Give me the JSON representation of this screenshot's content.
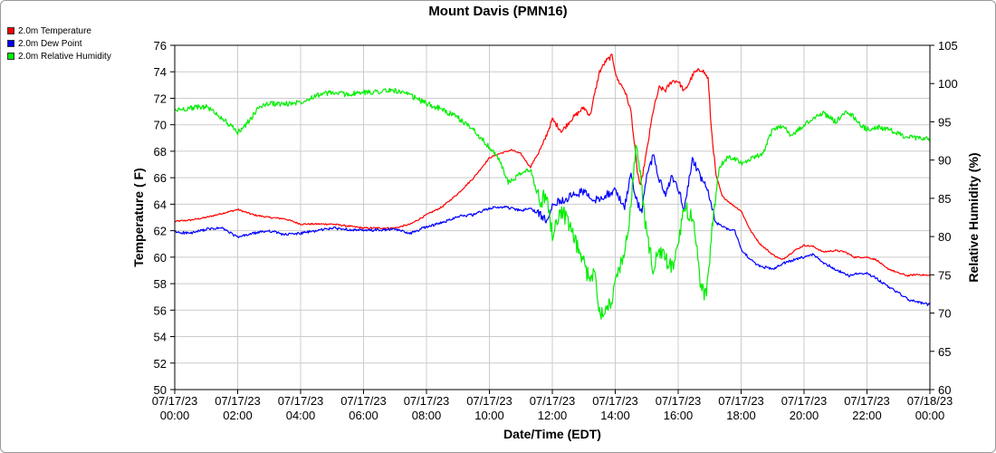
{
  "chart_data": {
    "type": "line",
    "title": "Mount Davis (PMN16)",
    "xlabel": "Date/Time (EDT)",
    "ylabel": "Temperature ( F)",
    "y2label": "Relative Humidity (%)",
    "ylim": [
      50,
      76
    ],
    "y2lim": [
      60,
      105
    ],
    "y_ticks": [
      50,
      52,
      54,
      56,
      58,
      60,
      62,
      64,
      66,
      68,
      70,
      72,
      74,
      76
    ],
    "y2_ticks": [
      60,
      65,
      70,
      75,
      80,
      85,
      90,
      95,
      100,
      105
    ],
    "x_hours": [
      0,
      2,
      4,
      6,
      8,
      10,
      12,
      14,
      16,
      18,
      20,
      22,
      24
    ],
    "x_tick_labels": [
      [
        "07/17/23",
        "00:00"
      ],
      [
        "07/17/23",
        "02:00"
      ],
      [
        "07/17/23",
        "04:00"
      ],
      [
        "07/17/23",
        "06:00"
      ],
      [
        "07/17/23",
        "08:00"
      ],
      [
        "07/17/23",
        "10:00"
      ],
      [
        "07/17/23",
        "12:00"
      ],
      [
        "07/17/23",
        "14:00"
      ],
      [
        "07/17/23",
        "16:00"
      ],
      [
        "07/17/23",
        "18:00"
      ],
      [
        "07/17/23",
        "20:00"
      ],
      [
        "07/17/23",
        "22:00"
      ],
      [
        "07/18/23",
        "00:00"
      ]
    ],
    "grid": true,
    "legend_position": "top-left",
    "series": [
      {
        "name": "2.0m Temperature",
        "color": "#ff0000",
        "axis": "left",
        "points": [
          [
            0,
            62.7
          ],
          [
            0.5,
            62.8
          ],
          [
            1,
            63
          ],
          [
            1.5,
            63.3
          ],
          [
            2,
            63.6
          ],
          [
            2.5,
            63.2
          ],
          [
            3,
            63
          ],
          [
            3.5,
            62.9
          ],
          [
            4,
            62.5
          ],
          [
            5,
            62.5
          ],
          [
            6,
            62.2
          ],
          [
            7,
            62.2
          ],
          [
            7.5,
            62.5
          ],
          [
            8,
            63.2
          ],
          [
            8.5,
            63.8
          ],
          [
            9,
            64.8
          ],
          [
            9.5,
            66
          ],
          [
            10,
            67.5
          ],
          [
            10.3,
            67.8
          ],
          [
            10.7,
            68.1
          ],
          [
            11,
            67.8
          ],
          [
            11.3,
            66.8
          ],
          [
            11.7,
            68.5
          ],
          [
            12,
            70.4
          ],
          [
            12.3,
            69.5
          ],
          [
            12.6,
            70.4
          ],
          [
            13,
            71.3
          ],
          [
            13.2,
            70.7
          ],
          [
            13.5,
            74
          ],
          [
            13.7,
            74.8
          ],
          [
            13.9,
            75.2
          ],
          [
            14.05,
            73.5
          ],
          [
            14.3,
            72.6
          ],
          [
            14.5,
            71
          ],
          [
            14.7,
            66.5
          ],
          [
            14.8,
            65.3
          ],
          [
            15,
            68
          ],
          [
            15.2,
            71
          ],
          [
            15.4,
            72.8
          ],
          [
            15.6,
            72.6
          ],
          [
            15.8,
            73.3
          ],
          [
            16,
            73.3
          ],
          [
            16.2,
            72.5
          ],
          [
            16.5,
            73.9
          ],
          [
            16.75,
            74.2
          ],
          [
            16.95,
            73.5
          ],
          [
            17.05,
            69.8
          ],
          [
            17.2,
            66.2
          ],
          [
            17.4,
            64.6
          ],
          [
            17.7,
            64.0
          ],
          [
            18,
            63.5
          ],
          [
            18.3,
            62.0
          ],
          [
            18.6,
            61.0
          ],
          [
            19,
            60.2
          ],
          [
            19.3,
            59.8
          ],
          [
            19.7,
            60.5
          ],
          [
            20,
            60.9
          ],
          [
            20.3,
            60.8
          ],
          [
            20.6,
            60.4
          ],
          [
            21,
            60.5
          ],
          [
            21.3,
            60.4
          ],
          [
            21.6,
            60.0
          ],
          [
            22,
            60.0
          ],
          [
            22.3,
            59.8
          ],
          [
            22.6,
            59.2
          ],
          [
            23,
            58.8
          ],
          [
            23.3,
            58.6
          ],
          [
            23.6,
            58.7
          ],
          [
            24,
            58.6
          ]
        ]
      },
      {
        "name": "2.0m Dew Point",
        "color": "#0000ff",
        "axis": "left",
        "points": [
          [
            0,
            61.9
          ],
          [
            0.5,
            61.8
          ],
          [
            1,
            62.1
          ],
          [
            1.5,
            62.2
          ],
          [
            2,
            61.5
          ],
          [
            2.5,
            61.8
          ],
          [
            3,
            62
          ],
          [
            3.5,
            61.7
          ],
          [
            4,
            61.8
          ],
          [
            5,
            62.2
          ],
          [
            6,
            62.0
          ],
          [
            7,
            62.1
          ],
          [
            7.5,
            61.8
          ],
          [
            8,
            62.3
          ],
          [
            8.5,
            62.6
          ],
          [
            9,
            63.1
          ],
          [
            9.5,
            63.2
          ],
          [
            10,
            63.7
          ],
          [
            10.5,
            63.8
          ],
          [
            11,
            63.5
          ],
          [
            11.3,
            63.7
          ],
          [
            11.6,
            63.2
          ],
          [
            11.8,
            62.8
          ],
          [
            12,
            64.0
          ],
          [
            12.5,
            64.5
          ],
          [
            13,
            65.0
          ],
          [
            13.3,
            64.2
          ],
          [
            13.6,
            64.6
          ],
          [
            14,
            65.0
          ],
          [
            14.3,
            63.8
          ],
          [
            14.5,
            66.3
          ],
          [
            14.7,
            64.0
          ],
          [
            14.85,
            63.6
          ],
          [
            15,
            66.0
          ],
          [
            15.2,
            67.7
          ],
          [
            15.4,
            65.8
          ],
          [
            15.6,
            64.8
          ],
          [
            15.8,
            66.0
          ],
          [
            16,
            65.2
          ],
          [
            16.2,
            63.6
          ],
          [
            16.45,
            67.5
          ],
          [
            16.7,
            66.0
          ],
          [
            16.9,
            65.3
          ],
          [
            17.05,
            64.0
          ],
          [
            17.2,
            62.6
          ],
          [
            17.5,
            62.2
          ],
          [
            17.8,
            62.0
          ],
          [
            18,
            60.6
          ],
          [
            18.3,
            59.8
          ],
          [
            18.6,
            59.3
          ],
          [
            19,
            59.1
          ],
          [
            19.3,
            59.5
          ],
          [
            19.7,
            59.8
          ],
          [
            20,
            60.0
          ],
          [
            20.3,
            60.2
          ],
          [
            20.6,
            59.6
          ],
          [
            21,
            59.1
          ],
          [
            21.4,
            58.6
          ],
          [
            21.8,
            58.8
          ],
          [
            22,
            58.8
          ],
          [
            22.3,
            58.4
          ],
          [
            22.6,
            57.9
          ],
          [
            23,
            57.3
          ],
          [
            23.3,
            56.8
          ],
          [
            23.6,
            56.6
          ],
          [
            24,
            56.4
          ]
        ]
      },
      {
        "name": "2.0m Relative Humidity",
        "color": "#00ee00",
        "axis": "right",
        "points": [
          [
            0,
            96.5
          ],
          [
            0.5,
            96.8
          ],
          [
            1,
            97
          ],
          [
            1.5,
            95.5
          ],
          [
            2,
            93.6
          ],
          [
            2.3,
            94.8
          ],
          [
            2.7,
            97
          ],
          [
            3,
            97.4
          ],
          [
            3.5,
            97.3
          ],
          [
            4,
            97.6
          ],
          [
            4.5,
            98.5
          ],
          [
            5,
            98.8
          ],
          [
            5.5,
            98.6
          ],
          [
            6,
            98.8
          ],
          [
            6.5,
            99
          ],
          [
            7,
            99.1
          ],
          [
            7.5,
            98.4
          ],
          [
            8,
            97.4
          ],
          [
            8.5,
            96.6
          ],
          [
            9,
            95.5
          ],
          [
            9.5,
            94
          ],
          [
            10,
            91.6
          ],
          [
            10.3,
            90.2
          ],
          [
            10.6,
            87
          ],
          [
            11,
            88.2
          ],
          [
            11.3,
            88.8
          ],
          [
            11.6,
            84.5
          ],
          [
            11.8,
            85.5
          ],
          [
            12,
            80.4
          ],
          [
            12.3,
            83.6
          ],
          [
            12.6,
            80.6
          ],
          [
            13,
            76.5
          ],
          [
            13.2,
            74.0
          ],
          [
            13.35,
            76.0
          ],
          [
            13.5,
            70.0
          ],
          [
            13.7,
            70.8
          ],
          [
            13.9,
            71.6
          ],
          [
            14.05,
            75.0
          ],
          [
            14.3,
            78.0
          ],
          [
            14.5,
            84.0
          ],
          [
            14.65,
            92.0
          ],
          [
            14.8,
            88.0
          ],
          [
            15,
            80.0
          ],
          [
            15.2,
            76.0
          ],
          [
            15.4,
            78.0
          ],
          [
            15.6,
            77.0
          ],
          [
            15.8,
            76.0
          ],
          [
            16,
            78.5
          ],
          [
            16.2,
            84.0
          ],
          [
            16.5,
            82.0
          ],
          [
            16.7,
            74.0
          ],
          [
            16.9,
            72.0
          ],
          [
            17.05,
            80.0
          ],
          [
            17.3,
            89.0
          ],
          [
            17.6,
            90.5
          ],
          [
            17.9,
            90.0
          ],
          [
            18.1,
            89.5
          ],
          [
            18.4,
            90.3
          ],
          [
            18.7,
            90.8
          ],
          [
            19,
            94.0
          ],
          [
            19.3,
            94.5
          ],
          [
            19.6,
            93.2
          ],
          [
            19.9,
            94.2
          ],
          [
            20.2,
            95.2
          ],
          [
            20.6,
            96.2
          ],
          [
            21,
            95.0
          ],
          [
            21.4,
            96.4
          ],
          [
            21.8,
            94.6
          ],
          [
            22,
            94.0
          ],
          [
            22.4,
            94.3
          ],
          [
            22.8,
            93.8
          ],
          [
            23.2,
            93.1
          ],
          [
            23.6,
            92.8
          ],
          [
            24,
            92.8
          ]
        ]
      }
    ]
  }
}
